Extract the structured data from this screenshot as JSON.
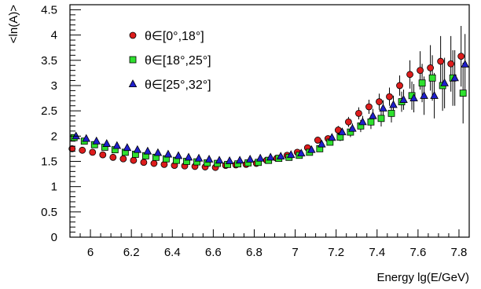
{
  "chart_data": {
    "type": "scatter",
    "xlabel": "Energy lg(E/GeV)",
    "ylabel": "<ln(A)>",
    "xlim": [
      5.9,
      7.85
    ],
    "ylim": [
      0,
      4.6
    ],
    "xticks": [
      6,
      6.2,
      6.4,
      6.6,
      6.8,
      7,
      7.2,
      7.4,
      7.6,
      7.8
    ],
    "xtick_labels": [
      "6",
      "6.2",
      "6.4",
      "6.6",
      "6.8",
      "7",
      "7.2",
      "7.4",
      "7.6",
      "7.8"
    ],
    "yticks": [
      0,
      0.5,
      1,
      1.5,
      2,
      2.5,
      3,
      3.5,
      4,
      4.5
    ],
    "ytick_labels": [
      "0",
      "0.5",
      "1",
      "1.5",
      "2",
      "2.5",
      "3",
      "3.5",
      "4",
      "4.5"
    ],
    "grid": false,
    "legend": "top-left",
    "x": [
      5.92,
      5.97,
      6.02,
      6.07,
      6.12,
      6.17,
      6.22,
      6.27,
      6.32,
      6.37,
      6.42,
      6.47,
      6.52,
      6.57,
      6.62,
      6.67,
      6.72,
      6.77,
      6.82,
      6.87,
      6.92,
      6.97,
      7.02,
      7.07,
      7.12,
      7.17,
      7.22,
      7.27,
      7.32,
      7.37,
      7.42,
      7.47,
      7.52,
      7.57,
      7.62,
      7.67,
      7.72,
      7.77,
      7.82
    ],
    "series": [
      {
        "name": "θ∈[0°,18°]",
        "marker": "circle",
        "color": "#dd1c1c",
        "values": [
          1.75,
          1.72,
          1.68,
          1.63,
          1.58,
          1.55,
          1.52,
          1.48,
          1.46,
          1.44,
          1.42,
          1.41,
          1.4,
          1.39,
          1.38,
          1.42,
          1.43,
          1.44,
          1.46,
          1.52,
          1.56,
          1.62,
          1.68,
          1.77,
          1.92,
          1.95,
          2.12,
          2.28,
          2.45,
          2.58,
          2.68,
          2.78,
          3.0,
          3.22,
          3.3,
          3.35,
          3.48,
          3.43,
          3.58
        ],
        "errors": [
          0.02,
          0.02,
          0.02,
          0.02,
          0.02,
          0.02,
          0.02,
          0.02,
          0.02,
          0.02,
          0.02,
          0.02,
          0.02,
          0.02,
          0.02,
          0.02,
          0.02,
          0.02,
          0.02,
          0.03,
          0.03,
          0.03,
          0.03,
          0.04,
          0.05,
          0.06,
          0.08,
          0.1,
          0.12,
          0.14,
          0.16,
          0.18,
          0.2,
          0.28,
          0.38,
          0.45,
          0.5,
          0.55,
          0.6
        ]
      },
      {
        "name": "θ∈[18°,25°]",
        "marker": "square",
        "color": "#2ee02e",
        "values": [
          1.97,
          1.9,
          1.83,
          1.78,
          1.73,
          1.68,
          1.64,
          1.61,
          1.58,
          1.55,
          1.52,
          1.5,
          1.49,
          1.47,
          1.46,
          1.44,
          1.45,
          1.47,
          1.48,
          1.52,
          1.56,
          1.58,
          1.62,
          1.68,
          1.75,
          1.88,
          1.98,
          2.08,
          2.2,
          2.28,
          2.35,
          2.45,
          2.68,
          2.8,
          3.05,
          3.15,
          3.0,
          3.15,
          2.85
        ],
        "errors": [
          0.02,
          0.02,
          0.02,
          0.02,
          0.02,
          0.02,
          0.02,
          0.02,
          0.02,
          0.02,
          0.02,
          0.02,
          0.02,
          0.02,
          0.02,
          0.02,
          0.02,
          0.02,
          0.02,
          0.03,
          0.03,
          0.03,
          0.03,
          0.04,
          0.05,
          0.06,
          0.08,
          0.1,
          0.12,
          0.14,
          0.16,
          0.18,
          0.2,
          0.28,
          0.38,
          0.45,
          0.5,
          0.55,
          0.6
        ]
      },
      {
        "name": "θ∈[25°,32°]",
        "marker": "triangle",
        "color": "#1f1fcc",
        "values": [
          2.0,
          1.95,
          1.9,
          1.85,
          1.81,
          1.77,
          1.73,
          1.7,
          1.67,
          1.64,
          1.61,
          1.58,
          1.56,
          1.54,
          1.52,
          1.51,
          1.52,
          1.54,
          1.56,
          1.58,
          1.6,
          1.63,
          1.66,
          1.73,
          1.84,
          1.97,
          2.08,
          2.15,
          2.28,
          2.4,
          2.55,
          2.62,
          2.72,
          2.75,
          2.8,
          2.8,
          3.05,
          3.15,
          3.42
        ],
        "errors": [
          0.02,
          0.02,
          0.02,
          0.02,
          0.02,
          0.02,
          0.02,
          0.02,
          0.02,
          0.02,
          0.02,
          0.02,
          0.02,
          0.02,
          0.02,
          0.02,
          0.02,
          0.02,
          0.02,
          0.03,
          0.03,
          0.03,
          0.03,
          0.04,
          0.05,
          0.06,
          0.08,
          0.1,
          0.12,
          0.14,
          0.16,
          0.18,
          0.2,
          0.28,
          0.38,
          0.45,
          0.5,
          0.55,
          0.6
        ]
      }
    ]
  }
}
